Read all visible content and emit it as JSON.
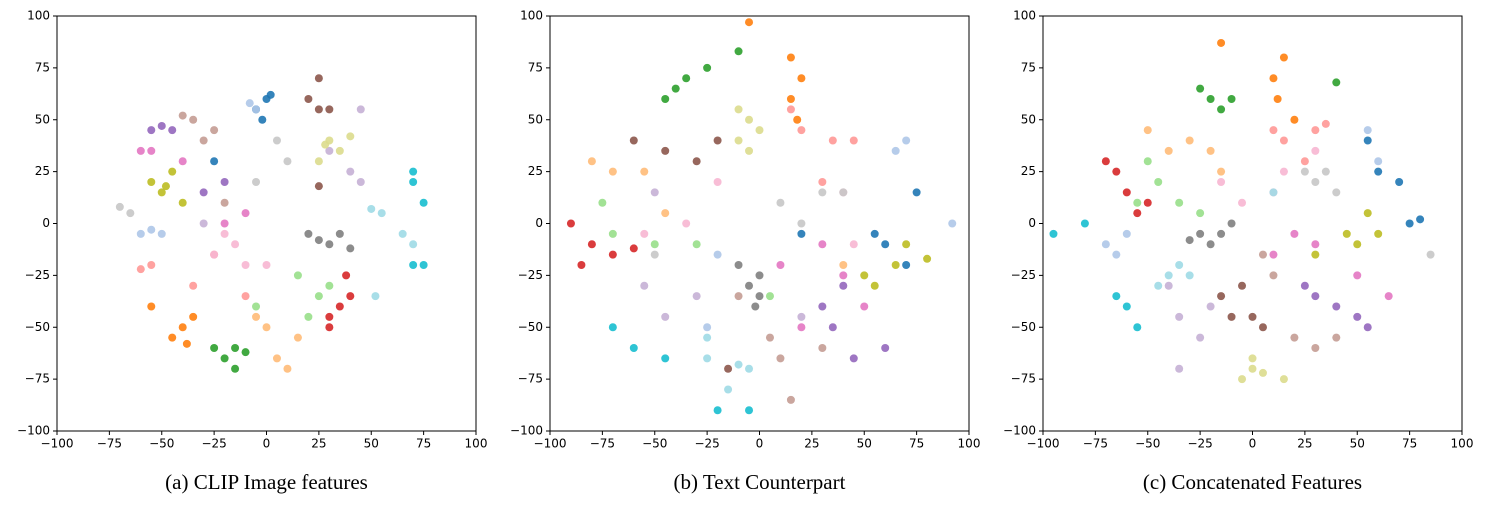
{
  "chart_data": [
    {
      "type": "scatter",
      "title": "(a) CLIP Image features",
      "xlim": [
        -100,
        100
      ],
      "ylim": [
        -100,
        100
      ],
      "xticks": [
        {
          "value": -100,
          "label": "−100"
        },
        {
          "value": -75,
          "label": "−75"
        },
        {
          "value": -50,
          "label": "−50"
        },
        {
          "value": -25,
          "label": "−25"
        },
        0,
        25,
        50,
        75,
        100
      ],
      "yticks": [
        {
          "value": -100,
          "label": "−100"
        },
        {
          "value": -75,
          "label": "−75"
        },
        {
          "value": -50,
          "label": "−50"
        },
        {
          "value": -25,
          "label": "−25"
        },
        0,
        25,
        50,
        75,
        100
      ],
      "series": [
        {
          "color": "#1f77b4",
          "x": [
            0,
            -5,
            2,
            -2,
            -25
          ],
          "values": [
            60,
            55,
            62,
            50,
            30
          ]
        },
        {
          "color": "#aec7e8",
          "x": [
            -5,
            -60,
            -55,
            -8,
            -50
          ],
          "values": [
            55,
            -5,
            -3,
            58,
            -5
          ]
        },
        {
          "color": "#ff7f0e",
          "x": [
            -40,
            -35,
            -45,
            -38,
            -55
          ],
          "values": [
            -50,
            -45,
            -55,
            -58,
            -40
          ]
        },
        {
          "color": "#ffbb78",
          "x": [
            10,
            5,
            -5,
            0,
            15
          ],
          "values": [
            -70,
            -65,
            -45,
            -50,
            -55
          ]
        },
        {
          "color": "#2ca02c",
          "x": [
            -20,
            -15,
            -25,
            -15,
            -10
          ],
          "values": [
            -65,
            -60,
            -60,
            -70,
            -62
          ]
        },
        {
          "color": "#98df8a",
          "x": [
            20,
            25,
            15,
            30,
            -5
          ],
          "values": [
            -45,
            -35,
            -25,
            -30,
            -40
          ]
        },
        {
          "color": "#d62728",
          "x": [
            35,
            30,
            40,
            30,
            38
          ],
          "values": [
            -40,
            -45,
            -35,
            -50,
            -25
          ]
        },
        {
          "color": "#ff9896",
          "x": [
            -55,
            -60,
            -35,
            -25,
            -10
          ],
          "values": [
            -20,
            -22,
            -30,
            -15,
            -35
          ]
        },
        {
          "color": "#9467bd",
          "x": [
            -50,
            -45,
            -55,
            -20,
            -30
          ],
          "values": [
            47,
            45,
            45,
            20,
            15
          ]
        },
        {
          "color": "#c5b0d5",
          "x": [
            45,
            40,
            45,
            30,
            -30
          ],
          "values": [
            55,
            25,
            20,
            35,
            0
          ]
        },
        {
          "color": "#8c564b",
          "x": [
            25,
            20,
            30,
            25,
            25
          ],
          "values": [
            55,
            60,
            55,
            70,
            18
          ]
        },
        {
          "color": "#c49c94",
          "x": [
            -35,
            -25,
            -40,
            -20,
            -30
          ],
          "values": [
            50,
            45,
            52,
            10,
            40
          ]
        },
        {
          "color": "#e377c2",
          "x": [
            -55,
            -40,
            -60,
            -20,
            -10
          ],
          "values": [
            35,
            30,
            35,
            0,
            5
          ]
        },
        {
          "color": "#f7b6d2",
          "x": [
            -20,
            -15,
            -25,
            -10,
            0
          ],
          "values": [
            -5,
            -10,
            -15,
            -20,
            -20
          ]
        },
        {
          "color": "#7f7f7f",
          "x": [
            30,
            35,
            40,
            25,
            20
          ],
          "values": [
            -10,
            -5,
            -12,
            -8,
            -5
          ]
        },
        {
          "color": "#c7c7c7",
          "x": [
            -70,
            -65,
            5,
            10,
            -5
          ],
          "values": [
            8,
            5,
            40,
            30,
            20
          ]
        },
        {
          "color": "#bcbd22",
          "x": [
            -55,
            -50,
            -45,
            -40,
            -48
          ],
          "values": [
            20,
            15,
            25,
            10,
            18
          ]
        },
        {
          "color": "#dbdb8d",
          "x": [
            30,
            35,
            28,
            40,
            25
          ],
          "values": [
            40,
            35,
            38,
            42,
            30
          ]
        },
        {
          "color": "#17becf",
          "x": [
            70,
            75,
            70,
            75,
            70
          ],
          "values": [
            20,
            10,
            -20,
            -20,
            25
          ]
        },
        {
          "color": "#9edae5",
          "x": [
            55,
            65,
            70,
            52,
            50
          ],
          "values": [
            5,
            -5,
            -10,
            -35,
            7
          ]
        }
      ]
    },
    {
      "type": "scatter",
      "title": "(b) Text Counterpart",
      "xlim": [
        -100,
        100
      ],
      "ylim": [
        -100,
        100
      ],
      "xticks": [
        {
          "value": -100,
          "label": "−100"
        },
        {
          "value": -75,
          "label": "−75"
        },
        {
          "value": -50,
          "label": "−50"
        },
        {
          "value": -25,
          "label": "−25"
        },
        0,
        25,
        50,
        75,
        100
      ],
      "yticks": [
        {
          "value": -100,
          "label": "−100"
        },
        {
          "value": -75,
          "label": "−75"
        },
        {
          "value": -50,
          "label": "−50"
        },
        {
          "value": -25,
          "label": "−25"
        },
        0,
        25,
        50,
        75,
        100
      ],
      "series": [
        {
          "color": "#1f77b4",
          "x": [
            55,
            60,
            70,
            20,
            75
          ],
          "values": [
            -5,
            -10,
            -20,
            -5,
            15
          ]
        },
        {
          "color": "#aec7e8",
          "x": [
            70,
            65,
            92,
            -25,
            -20
          ],
          "values": [
            40,
            35,
            0,
            -50,
            -15
          ]
        },
        {
          "color": "#ff7f0e",
          "x": [
            15,
            20,
            15,
            -5,
            18
          ],
          "values": [
            80,
            70,
            60,
            97,
            50
          ]
        },
        {
          "color": "#ffbb78",
          "x": [
            -70,
            -55,
            -80,
            40,
            -45
          ],
          "values": [
            25,
            25,
            30,
            -20,
            5
          ]
        },
        {
          "color": "#2ca02c",
          "x": [
            -40,
            -35,
            -25,
            -10,
            -45
          ],
          "values": [
            65,
            70,
            75,
            83,
            60
          ]
        },
        {
          "color": "#98df8a",
          "x": [
            -75,
            -70,
            -30,
            -50,
            5
          ],
          "values": [
            10,
            -5,
            -10,
            -10,
            -35
          ]
        },
        {
          "color": "#d62728",
          "x": [
            -90,
            -80,
            -70,
            -60,
            -85
          ],
          "values": [
            0,
            -10,
            -15,
            -12,
            -20
          ]
        },
        {
          "color": "#ff9896",
          "x": [
            20,
            35,
            45,
            15,
            30
          ],
          "values": [
            45,
            40,
            40,
            55,
            20
          ]
        },
        {
          "color": "#9467bd",
          "x": [
            40,
            35,
            30,
            45,
            60
          ],
          "values": [
            -30,
            -50,
            -40,
            -65,
            -60
          ]
        },
        {
          "color": "#c5b0d5",
          "x": [
            -55,
            -45,
            -30,
            20,
            -50
          ],
          "values": [
            -30,
            -45,
            -35,
            -45,
            15
          ]
        },
        {
          "color": "#8c564b",
          "x": [
            -60,
            -45,
            -30,
            -20,
            -15
          ],
          "values": [
            40,
            35,
            30,
            40,
            -70
          ]
        },
        {
          "color": "#c49c94",
          "x": [
            -10,
            10,
            15,
            30,
            5
          ],
          "values": [
            -35,
            -65,
            -85,
            -60,
            -55
          ]
        },
        {
          "color": "#e377c2",
          "x": [
            30,
            40,
            20,
            50,
            10
          ],
          "values": [
            -10,
            -25,
            -50,
            -40,
            -20
          ]
        },
        {
          "color": "#f7b6d2",
          "x": [
            -55,
            -20,
            40,
            45,
            -35
          ],
          "values": [
            -5,
            20,
            15,
            -10,
            0
          ]
        },
        {
          "color": "#7f7f7f",
          "x": [
            -5,
            0,
            -10,
            -2,
            0
          ],
          "values": [
            -30,
            -35,
            -20,
            -40,
            -25
          ]
        },
        {
          "color": "#c7c7c7",
          "x": [
            30,
            40,
            -50,
            20,
            10
          ],
          "values": [
            15,
            15,
            -15,
            0,
            10
          ]
        },
        {
          "color": "#bcbd22",
          "x": [
            65,
            55,
            70,
            80,
            50
          ],
          "values": [
            -20,
            -30,
            -10,
            -17,
            -25
          ]
        },
        {
          "color": "#dbdb8d",
          "x": [
            -10,
            -5,
            -10,
            -5,
            0
          ],
          "values": [
            55,
            50,
            40,
            35,
            45
          ]
        },
        {
          "color": "#17becf",
          "x": [
            -70,
            -60,
            -45,
            -20,
            -5
          ],
          "values": [
            -50,
            -60,
            -65,
            -90,
            -90
          ]
        },
        {
          "color": "#9edae5",
          "x": [
            -25,
            -10,
            -25,
            -15,
            -5
          ],
          "values": [
            -65,
            -68,
            -55,
            -80,
            -70
          ]
        }
      ]
    },
    {
      "type": "scatter",
      "title": "(c) Concatenated Features",
      "xlim": [
        -100,
        100
      ],
      "ylim": [
        -100,
        100
      ],
      "xticks": [
        {
          "value": -100,
          "label": "−100"
        },
        {
          "value": -75,
          "label": "−75"
        },
        {
          "value": -50,
          "label": "−50"
        },
        {
          "value": -25,
          "label": "−25"
        },
        0,
        25,
        50,
        75,
        100
      ],
      "yticks": [
        {
          "value": -100,
          "label": "−100"
        },
        {
          "value": -75,
          "label": "−75"
        },
        {
          "value": -50,
          "label": "−50"
        },
        {
          "value": -25,
          "label": "−25"
        },
        0,
        25,
        50,
        75,
        100
      ],
      "series": [
        {
          "color": "#1f77b4",
          "x": [
            60,
            70,
            75,
            55,
            80
          ],
          "values": [
            25,
            20,
            0,
            40,
            2
          ]
        },
        {
          "color": "#aec7e8",
          "x": [
            55,
            -70,
            -60,
            -65,
            60
          ],
          "values": [
            45,
            -10,
            -5,
            -15,
            30
          ]
        },
        {
          "color": "#ff7f0e",
          "x": [
            10,
            15,
            12,
            20,
            -15
          ],
          "values": [
            70,
            80,
            60,
            50,
            87
          ]
        },
        {
          "color": "#ffbb78",
          "x": [
            -50,
            -40,
            -30,
            -20,
            -15
          ],
          "values": [
            45,
            35,
            40,
            35,
            25
          ]
        },
        {
          "color": "#2ca02c",
          "x": [
            -25,
            -15,
            -10,
            40,
            -20
          ],
          "values": [
            65,
            55,
            60,
            68,
            60
          ]
        },
        {
          "color": "#98df8a",
          "x": [
            -55,
            -50,
            -35,
            -25,
            -45
          ],
          "values": [
            10,
            30,
            10,
            5,
            20
          ]
        },
        {
          "color": "#d62728",
          "x": [
            -65,
            -60,
            -55,
            -70,
            -50
          ],
          "values": [
            25,
            15,
            5,
            30,
            10
          ]
        },
        {
          "color": "#ff9896",
          "x": [
            15,
            30,
            25,
            10,
            35
          ],
          "values": [
            40,
            45,
            30,
            45,
            48
          ]
        },
        {
          "color": "#9467bd",
          "x": [
            40,
            50,
            30,
            55,
            25
          ],
          "values": [
            -40,
            -45,
            -35,
            -50,
            -30
          ]
        },
        {
          "color": "#c5b0d5",
          "x": [
            -35,
            -25,
            -20,
            -35,
            -40
          ],
          "values": [
            -45,
            -55,
            -40,
            -70,
            -30
          ]
        },
        {
          "color": "#8c564b",
          "x": [
            -10,
            0,
            5,
            -15,
            -5
          ],
          "values": [
            -45,
            -45,
            -50,
            -35,
            -30
          ]
        },
        {
          "color": "#c49c94",
          "x": [
            5,
            20,
            30,
            10,
            40
          ],
          "values": [
            -15,
            -55,
            -60,
            -25,
            -55
          ]
        },
        {
          "color": "#e377c2",
          "x": [
            10,
            30,
            20,
            50,
            65
          ],
          "values": [
            -15,
            -10,
            -5,
            -25,
            -35
          ]
        },
        {
          "color": "#f7b6d2",
          "x": [
            -5,
            10,
            15,
            30,
            -15
          ],
          "values": [
            10,
            15,
            25,
            35,
            20
          ]
        },
        {
          "color": "#7f7f7f",
          "x": [
            -25,
            -20,
            -15,
            -30,
            -10
          ],
          "values": [
            -5,
            -10,
            -5,
            -8,
            0
          ]
        },
        {
          "color": "#c7c7c7",
          "x": [
            35,
            25,
            85,
            30,
            40
          ],
          "values": [
            25,
            25,
            -15,
            20,
            15
          ]
        },
        {
          "color": "#bcbd22",
          "x": [
            45,
            55,
            60,
            30,
            50
          ],
          "values": [
            -5,
            5,
            -5,
            -15,
            -10
          ]
        },
        {
          "color": "#dbdb8d",
          "x": [
            0,
            -5,
            5,
            15,
            0
          ],
          "values": [
            -70,
            -75,
            -72,
            -75,
            -65
          ]
        },
        {
          "color": "#17becf",
          "x": [
            -80,
            -95,
            -65,
            -55,
            -60
          ],
          "values": [
            0,
            -5,
            -35,
            -50,
            -40
          ]
        },
        {
          "color": "#9edae5",
          "x": [
            -40,
            -35,
            -45,
            -30,
            10
          ],
          "values": [
            -25,
            -20,
            -30,
            -25,
            15
          ]
        }
      ]
    }
  ]
}
